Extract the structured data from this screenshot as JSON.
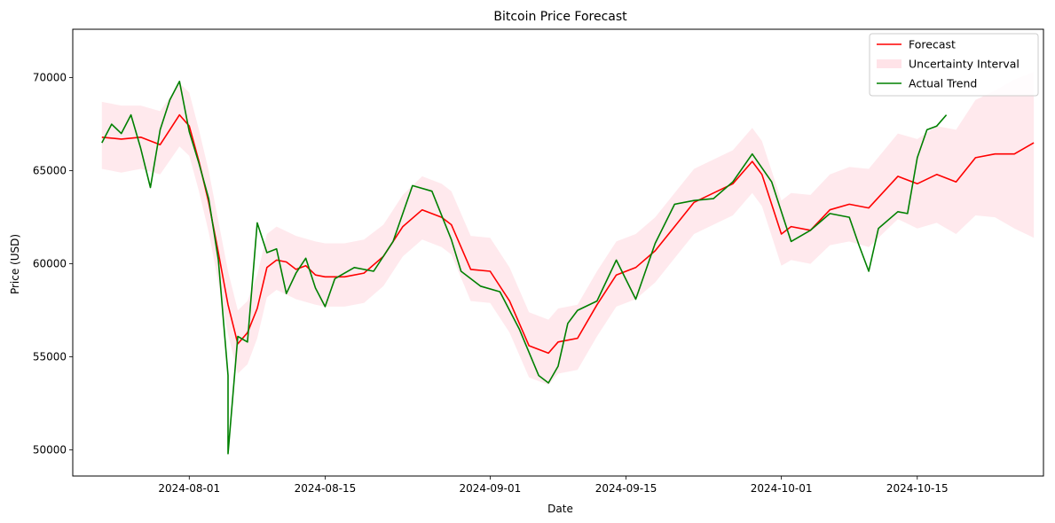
{
  "chart_data": {
    "type": "line",
    "title": "Bitcoin Price Forecast",
    "xlabel": "Date",
    "ylabel": "Price (USD)",
    "xlim": [
      "2024-07-20",
      "2024-10-28"
    ],
    "ylim": [
      48600,
      72600
    ],
    "x_ticks": [
      "2024-08-01",
      "2024-08-15",
      "2024-09-01",
      "2024-09-15",
      "2024-10-01",
      "2024-10-15"
    ],
    "y_ticks": [
      50000,
      55000,
      60000,
      65000,
      70000
    ],
    "grid": false,
    "legend_position": "top-right",
    "legend": [
      {
        "label": "Forecast",
        "kind": "line",
        "color": "#ff0000"
      },
      {
        "label": "Uncertainty Interval",
        "kind": "patch",
        "color": "#ffc0cb"
      },
      {
        "label": "Actual Trend",
        "kind": "line",
        "color": "#008000"
      }
    ],
    "series": [
      {
        "name": "Forecast",
        "color": "#ff0000",
        "points": [
          [
            "2024-07-23",
            66800
          ],
          [
            "2024-07-25",
            66700
          ],
          [
            "2024-07-27",
            66800
          ],
          [
            "2024-07-29",
            66400
          ],
          [
            "2024-07-30",
            67200
          ],
          [
            "2024-07-31",
            68000
          ],
          [
            "2024-08-01",
            67400
          ],
          [
            "2024-08-02",
            65500
          ],
          [
            "2024-08-03",
            63300
          ],
          [
            "2024-08-04",
            60600
          ],
          [
            "2024-08-05",
            57800
          ],
          [
            "2024-08-06",
            55700
          ],
          [
            "2024-08-07",
            56300
          ],
          [
            "2024-08-08",
            57600
          ],
          [
            "2024-08-09",
            59800
          ],
          [
            "2024-08-10",
            60200
          ],
          [
            "2024-08-11",
            60100
          ],
          [
            "2024-08-12",
            59700
          ],
          [
            "2024-08-13",
            59900
          ],
          [
            "2024-08-14",
            59400
          ],
          [
            "2024-08-15",
            59300
          ],
          [
            "2024-08-17",
            59300
          ],
          [
            "2024-08-19",
            59500
          ],
          [
            "2024-08-21",
            60400
          ],
          [
            "2024-08-23",
            62000
          ],
          [
            "2024-08-25",
            62900
          ],
          [
            "2024-08-27",
            62500
          ],
          [
            "2024-08-28",
            62100
          ],
          [
            "2024-08-30",
            59700
          ],
          [
            "2024-09-01",
            59600
          ],
          [
            "2024-09-03",
            58000
          ],
          [
            "2024-09-05",
            55600
          ],
          [
            "2024-09-07",
            55200
          ],
          [
            "2024-09-08",
            55800
          ],
          [
            "2024-09-10",
            56000
          ],
          [
            "2024-09-12",
            57800
          ],
          [
            "2024-09-14",
            59400
          ],
          [
            "2024-09-16",
            59800
          ],
          [
            "2024-09-18",
            60700
          ],
          [
            "2024-09-20",
            62000
          ],
          [
            "2024-09-22",
            63300
          ],
          [
            "2024-09-24",
            63800
          ],
          [
            "2024-09-26",
            64300
          ],
          [
            "2024-09-28",
            65500
          ],
          [
            "2024-09-29",
            64800
          ],
          [
            "2024-10-01",
            61600
          ],
          [
            "2024-10-02",
            62000
          ],
          [
            "2024-10-04",
            61800
          ],
          [
            "2024-10-06",
            62900
          ],
          [
            "2024-10-08",
            63200
          ],
          [
            "2024-10-10",
            63000
          ],
          [
            "2024-10-13",
            64700
          ],
          [
            "2024-10-15",
            64300
          ],
          [
            "2024-10-17",
            64800
          ],
          [
            "2024-10-19",
            64400
          ],
          [
            "2024-10-21",
            65700
          ],
          [
            "2024-10-23",
            65900
          ],
          [
            "2024-10-25",
            65900
          ],
          [
            "2024-10-27",
            66500
          ]
        ]
      },
      {
        "name": "Actual Trend",
        "color": "#008000",
        "points": [
          [
            "2024-07-23",
            66500
          ],
          [
            "2024-07-24",
            67500
          ],
          [
            "2024-07-25",
            67000
          ],
          [
            "2024-07-26",
            68000
          ],
          [
            "2024-07-27",
            66200
          ],
          [
            "2024-07-28",
            64100
          ],
          [
            "2024-07-29",
            67200
          ],
          [
            "2024-07-30",
            68800
          ],
          [
            "2024-07-31",
            69800
          ],
          [
            "2024-08-01",
            67100
          ],
          [
            "2024-08-02",
            65400
          ],
          [
            "2024-08-03",
            63500
          ],
          [
            "2024-08-04",
            60200
          ],
          [
            "2024-08-05",
            54000
          ],
          [
            "2024-08-05",
            49800
          ],
          [
            "2024-08-06",
            56100
          ],
          [
            "2024-08-07",
            55800
          ],
          [
            "2024-08-08",
            62200
          ],
          [
            "2024-08-09",
            60600
          ],
          [
            "2024-08-10",
            60800
          ],
          [
            "2024-08-11",
            58400
          ],
          [
            "2024-08-12",
            59500
          ],
          [
            "2024-08-13",
            60300
          ],
          [
            "2024-08-14",
            58700
          ],
          [
            "2024-08-15",
            57700
          ],
          [
            "2024-08-16",
            59200
          ],
          [
            "2024-08-18",
            59800
          ],
          [
            "2024-08-20",
            59600
          ],
          [
            "2024-08-22",
            61200
          ],
          [
            "2024-08-24",
            64200
          ],
          [
            "2024-08-26",
            63900
          ],
          [
            "2024-08-28",
            61300
          ],
          [
            "2024-08-29",
            59600
          ],
          [
            "2024-08-31",
            58800
          ],
          [
            "2024-09-02",
            58500
          ],
          [
            "2024-09-04",
            56500
          ],
          [
            "2024-09-06",
            54000
          ],
          [
            "2024-09-07",
            53600
          ],
          [
            "2024-09-08",
            54500
          ],
          [
            "2024-09-09",
            56800
          ],
          [
            "2024-09-10",
            57500
          ],
          [
            "2024-09-12",
            58000
          ],
          [
            "2024-09-14",
            60200
          ],
          [
            "2024-09-16",
            58100
          ],
          [
            "2024-09-18",
            61100
          ],
          [
            "2024-09-20",
            63200
          ],
          [
            "2024-09-22",
            63400
          ],
          [
            "2024-09-24",
            63500
          ],
          [
            "2024-09-26",
            64400
          ],
          [
            "2024-09-28",
            65900
          ],
          [
            "2024-09-30",
            64400
          ],
          [
            "2024-10-01",
            62800
          ],
          [
            "2024-10-02",
            61200
          ],
          [
            "2024-10-04",
            61800
          ],
          [
            "2024-10-06",
            62700
          ],
          [
            "2024-10-08",
            62500
          ],
          [
            "2024-10-09",
            61000
          ],
          [
            "2024-10-10",
            59600
          ],
          [
            "2024-10-11",
            61900
          ],
          [
            "2024-10-13",
            62800
          ],
          [
            "2024-10-14",
            62700
          ],
          [
            "2024-10-15",
            65700
          ],
          [
            "2024-10-16",
            67200
          ],
          [
            "2024-10-17",
            67400
          ],
          [
            "2024-10-18",
            68000
          ]
        ]
      }
    ],
    "uncertainty_interval": {
      "name": "Uncertainty Interval",
      "color": "#ffc0cb",
      "points": [
        [
          "2024-07-23",
          65100,
          68700
        ],
        [
          "2024-07-25",
          64900,
          68500
        ],
        [
          "2024-07-27",
          65100,
          68500
        ],
        [
          "2024-07-29",
          64800,
          68200
        ],
        [
          "2024-07-31",
          66300,
          69700
        ],
        [
          "2024-08-01",
          65800,
          69200
        ],
        [
          "2024-08-02",
          63900,
          67200
        ],
        [
          "2024-08-03",
          61700,
          65000
        ],
        [
          "2024-08-04",
          59000,
          62300
        ],
        [
          "2024-08-05",
          56200,
          59600
        ],
        [
          "2024-08-06",
          54100,
          57500
        ],
        [
          "2024-08-07",
          54600,
          58000
        ],
        [
          "2024-08-08",
          56000,
          59400
        ],
        [
          "2024-08-09",
          58200,
          61600
        ],
        [
          "2024-08-10",
          58600,
          62000
        ],
        [
          "2024-08-12",
          58100,
          61500
        ],
        [
          "2024-08-14",
          57800,
          61200
        ],
        [
          "2024-08-15",
          57700,
          61100
        ],
        [
          "2024-08-17",
          57700,
          61100
        ],
        [
          "2024-08-19",
          57900,
          61300
        ],
        [
          "2024-08-21",
          58800,
          62100
        ],
        [
          "2024-08-23",
          60400,
          63700
        ],
        [
          "2024-08-25",
          61300,
          64700
        ],
        [
          "2024-08-27",
          60900,
          64300
        ],
        [
          "2024-08-28",
          60500,
          63900
        ],
        [
          "2024-08-30",
          58000,
          61500
        ],
        [
          "2024-09-01",
          57900,
          61400
        ],
        [
          "2024-09-03",
          56300,
          59800
        ],
        [
          "2024-09-05",
          53900,
          57400
        ],
        [
          "2024-09-07",
          53500,
          57000
        ],
        [
          "2024-09-08",
          54100,
          57600
        ],
        [
          "2024-09-10",
          54300,
          57800
        ],
        [
          "2024-09-12",
          56100,
          59600
        ],
        [
          "2024-09-14",
          57700,
          61200
        ],
        [
          "2024-09-16",
          58100,
          61600
        ],
        [
          "2024-09-18",
          59000,
          62500
        ],
        [
          "2024-09-20",
          60300,
          63800
        ],
        [
          "2024-09-22",
          61600,
          65100
        ],
        [
          "2024-09-24",
          62100,
          65600
        ],
        [
          "2024-09-26",
          62600,
          66100
        ],
        [
          "2024-09-28",
          63800,
          67300
        ],
        [
          "2024-09-29",
          63100,
          66600
        ],
        [
          "2024-10-01",
          59900,
          63400
        ],
        [
          "2024-10-02",
          60200,
          63800
        ],
        [
          "2024-10-04",
          60000,
          63700
        ],
        [
          "2024-10-06",
          61000,
          64800
        ],
        [
          "2024-10-08",
          61200,
          65200
        ],
        [
          "2024-10-10",
          60900,
          65100
        ],
        [
          "2024-10-13",
          62400,
          67000
        ],
        [
          "2024-10-15",
          61900,
          66700
        ],
        [
          "2024-10-17",
          62200,
          67400
        ],
        [
          "2024-10-19",
          61600,
          67200
        ],
        [
          "2024-10-21",
          62600,
          68800
        ],
        [
          "2024-10-23",
          62500,
          69300
        ],
        [
          "2024-10-25",
          61900,
          69900
        ],
        [
          "2024-10-27",
          61400,
          70300
        ]
      ]
    }
  }
}
